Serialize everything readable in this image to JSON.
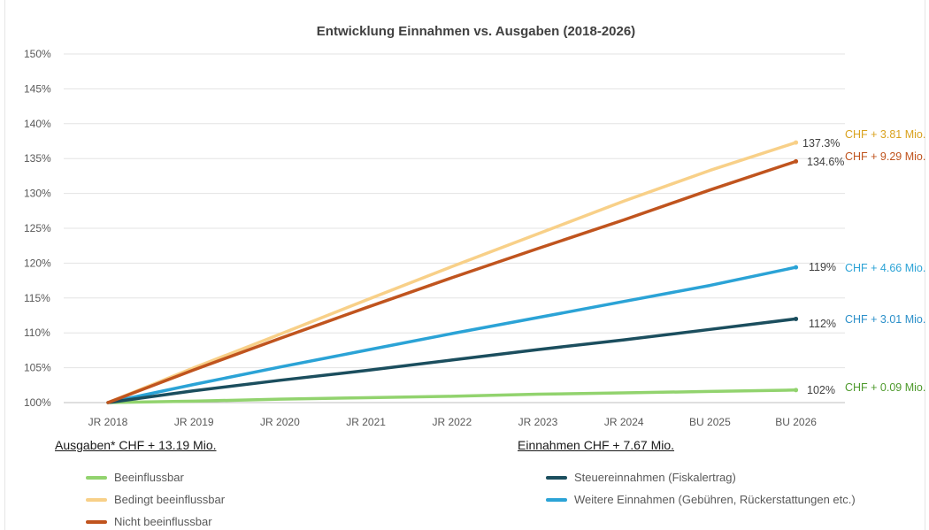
{
  "chart_data": {
    "type": "line",
    "title": "Entwicklung Einnahmen vs. Ausgaben (2018-2026)",
    "categories": [
      "JR 2018",
      "JR 2019",
      "JR 2020",
      "JR 2021",
      "JR 2022",
      "JR 2023",
      "JR 2024",
      "BU 2025",
      "BU 2026"
    ],
    "y_ticks": [
      "100%",
      "105%",
      "110%",
      "115%",
      "120%",
      "125%",
      "130%",
      "135%",
      "140%",
      "145%",
      "150%"
    ],
    "ylim": [
      100,
      150
    ],
    "grid": true,
    "series": [
      {
        "name": "Beeinflussbar",
        "color": "#92d36e",
        "values": [
          100,
          100.2,
          100.5,
          100.7,
          100.9,
          101.2,
          101.4,
          101.6,
          101.8
        ],
        "end_label": "102%",
        "chf_label": "CHF + 0.09 Mio.",
        "chf_color": "#4e9a2c"
      },
      {
        "name": "Bedingt beeinflussbar",
        "color": "#f8d088",
        "values": [
          100,
          105.0,
          109.8,
          114.7,
          119.5,
          124.2,
          128.9,
          133.3,
          137.3
        ],
        "end_label": "137.3%",
        "chf_label": "CHF + 3.81 Mio.",
        "chf_color": "#d9a21e"
      },
      {
        "name": "Nicht beeinflussbar",
        "color": "#c0541e",
        "values": [
          100,
          104.7,
          109.2,
          113.6,
          117.9,
          122.1,
          126.2,
          130.5,
          134.6
        ],
        "end_label": "134.6%",
        "chf_label": "CHF + 9.29 Mio.",
        "chf_color": "#c0541e"
      },
      {
        "name": "Steuereinnahmen (Fiskalertrag)",
        "color": "#1b4e5e",
        "values": [
          100,
          101.7,
          103.2,
          104.6,
          106.1,
          107.6,
          109.0,
          110.5,
          112.0
        ],
        "end_label": "112%",
        "chf_label": "CHF + 3.01 Mio.",
        "chf_color": "#2a8fc9"
      },
      {
        "name": "Weitere Einnahmen (Gebühren, Rückerstattungen etc.)",
        "color": "#2ba3d6",
        "values": [
          100,
          102.6,
          105.1,
          107.5,
          109.9,
          112.2,
          114.5,
          116.8,
          119.4
        ],
        "end_label": "119%",
        "chf_label": "CHF + 4.66 Mio.",
        "chf_color": "#2ba3d6"
      }
    ]
  },
  "legend": {
    "ausgaben_heading": "Ausgaben* CHF + 13.19 Mio.",
    "einnahmen_heading": "Einnahmen CHF + 7.67 Mio."
  }
}
